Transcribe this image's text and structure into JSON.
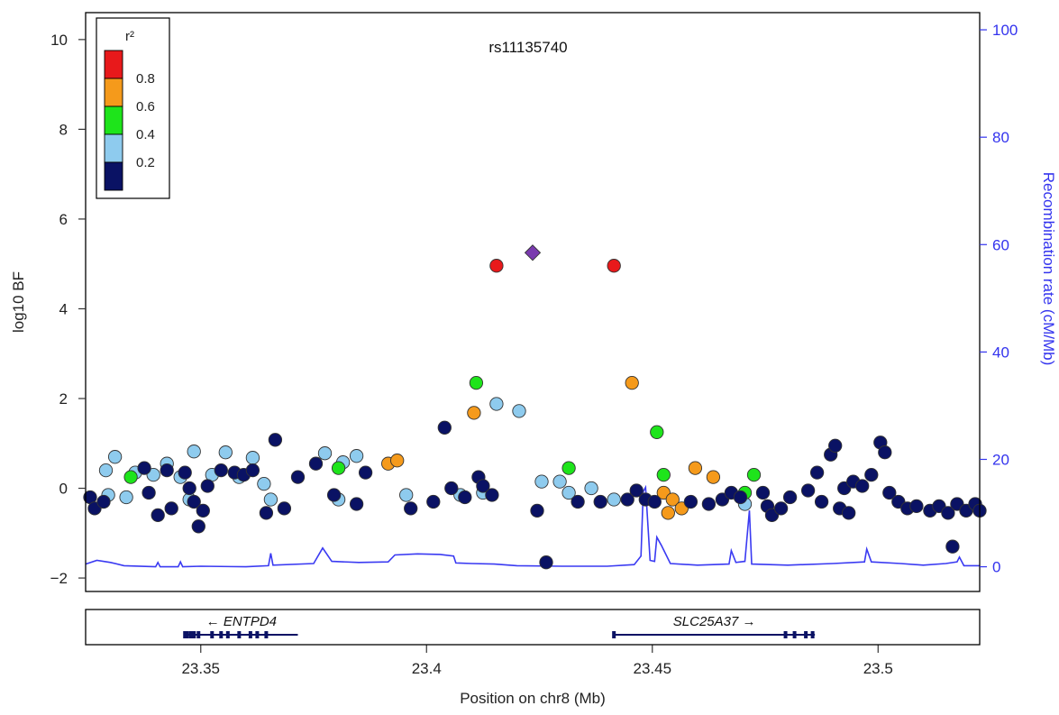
{
  "chart_data": {
    "type": "scatter",
    "title": "rs11135740",
    "xlabel": "Position on chr8 (Mb)",
    "ylabel": "log10 BF",
    "y2label": "Recombination rate (cM/Mb)",
    "xlim": [
      23.3245,
      23.5225
    ],
    "ylim": [
      -2.3,
      10.6
    ],
    "y2lim": [
      -4.6,
      103.2
    ],
    "x_ticks": [
      23.35,
      23.4,
      23.45,
      23.5
    ],
    "x_tick_labels": [
      "23.35",
      "23.4",
      "23.45",
      "23.5"
    ],
    "y_ticks": [
      -2,
      0,
      2,
      4,
      6,
      8,
      10
    ],
    "y_tick_labels": [
      "−2",
      "0",
      "2",
      "4",
      "6",
      "8",
      "10"
    ],
    "y2_ticks": [
      0,
      20,
      40,
      60,
      80,
      100
    ],
    "y2_tick_labels": [
      "0",
      "20",
      "40",
      "60",
      "80",
      "100"
    ],
    "legend": {
      "title": "r²",
      "placement": "top-left",
      "bins": [
        {
          "label": "0.8",
          "color": "#e8191b"
        },
        {
          "label": "0.6",
          "color": "#f59a1b"
        },
        {
          "label": "0.4",
          "color": "#1ee41b"
        },
        {
          "label": "0.2",
          "color": "#8ecbee"
        },
        {
          "label": "",
          "color": "#0a1264"
        }
      ]
    },
    "colors": {
      "red": "#e8191b",
      "orange": "#f59a1b",
      "green": "#1ee41b",
      "lightblue": "#8ecbee",
      "navy": "#0a1264",
      "lead": "#7a3aaf",
      "recomb": "#3a3af2"
    },
    "lead_snp": {
      "x": 23.4235,
      "y": 5.25
    },
    "points": [
      {
        "x": 23.4155,
        "y": 4.96,
        "c": "red"
      },
      {
        "x": 23.4415,
        "y": 4.96,
        "c": "red"
      },
      {
        "x": 23.411,
        "y": 2.35,
        "c": "green"
      },
      {
        "x": 23.4455,
        "y": 2.35,
        "c": "orange"
      },
      {
        "x": 23.4105,
        "y": 1.68,
        "c": "orange"
      },
      {
        "x": 23.4155,
        "y": 1.88,
        "c": "lightblue"
      },
      {
        "x": 23.4205,
        "y": 1.72,
        "c": "lightblue"
      },
      {
        "x": 23.404,
        "y": 1.35,
        "c": "navy"
      },
      {
        "x": 23.451,
        "y": 1.25,
        "c": "green"
      },
      {
        "x": 23.3665,
        "y": 1.08,
        "c": "navy"
      },
      {
        "x": 23.3555,
        "y": 0.8,
        "c": "lightblue"
      },
      {
        "x": 23.3485,
        "y": 0.82,
        "c": "lightblue"
      },
      {
        "x": 23.3425,
        "y": 0.55,
        "c": "lightblue"
      },
      {
        "x": 23.3615,
        "y": 0.68,
        "c": "lightblue"
      },
      {
        "x": 23.3775,
        "y": 0.78,
        "c": "lightblue"
      },
      {
        "x": 23.3845,
        "y": 0.72,
        "c": "lightblue"
      },
      {
        "x": 23.3815,
        "y": 0.58,
        "c": "lightblue"
      },
      {
        "x": 23.331,
        "y": 0.7,
        "c": "lightblue"
      },
      {
        "x": 23.329,
        "y": 0.4,
        "c": "lightblue"
      },
      {
        "x": 23.3355,
        "y": 0.35,
        "c": "lightblue"
      },
      {
        "x": 23.3395,
        "y": 0.3,
        "c": "lightblue"
      },
      {
        "x": 23.3455,
        "y": 0.25,
        "c": "lightblue"
      },
      {
        "x": 23.3525,
        "y": 0.3,
        "c": "lightblue"
      },
      {
        "x": 23.3585,
        "y": 0.25,
        "c": "lightblue"
      },
      {
        "x": 23.364,
        "y": 0.1,
        "c": "lightblue"
      },
      {
        "x": 23.3335,
        "y": -0.2,
        "c": "lightblue"
      },
      {
        "x": 23.3295,
        "y": -0.15,
        "c": "lightblue"
      },
      {
        "x": 23.3475,
        "y": -0.25,
        "c": "lightblue"
      },
      {
        "x": 23.3655,
        "y": -0.25,
        "c": "lightblue"
      },
      {
        "x": 23.3805,
        "y": -0.25,
        "c": "lightblue"
      },
      {
        "x": 23.3955,
        "y": -0.15,
        "c": "lightblue"
      },
      {
        "x": 23.4075,
        "y": -0.15,
        "c": "lightblue"
      },
      {
        "x": 23.4125,
        "y": -0.1,
        "c": "lightblue"
      },
      {
        "x": 23.4255,
        "y": 0.15,
        "c": "lightblue"
      },
      {
        "x": 23.4295,
        "y": 0.15,
        "c": "lightblue"
      },
      {
        "x": 23.4315,
        "y": -0.1,
        "c": "lightblue"
      },
      {
        "x": 23.4365,
        "y": 0.0,
        "c": "lightblue"
      },
      {
        "x": 23.4415,
        "y": -0.25,
        "c": "lightblue"
      },
      {
        "x": 23.4705,
        "y": -0.35,
        "c": "lightblue"
      },
      {
        "x": 23.3345,
        "y": 0.25,
        "c": "green"
      },
      {
        "x": 23.3805,
        "y": 0.45,
        "c": "green"
      },
      {
        "x": 23.4315,
        "y": 0.45,
        "c": "green"
      },
      {
        "x": 23.4525,
        "y": 0.3,
        "c": "green"
      },
      {
        "x": 23.4725,
        "y": 0.3,
        "c": "green"
      },
      {
        "x": 23.4705,
        "y": -0.1,
        "c": "green"
      },
      {
        "x": 23.3915,
        "y": 0.55,
        "c": "orange"
      },
      {
        "x": 23.3935,
        "y": 0.62,
        "c": "orange"
      },
      {
        "x": 23.4595,
        "y": 0.45,
        "c": "orange"
      },
      {
        "x": 23.4635,
        "y": 0.25,
        "c": "orange"
      },
      {
        "x": 23.4525,
        "y": -0.1,
        "c": "orange"
      },
      {
        "x": 23.4545,
        "y": -0.25,
        "c": "orange"
      },
      {
        "x": 23.4565,
        "y": -0.45,
        "c": "orange"
      },
      {
        "x": 23.4535,
        "y": -0.55,
        "c": "orange"
      },
      {
        "x": 23.3255,
        "y": -0.2,
        "c": "navy"
      },
      {
        "x": 23.3265,
        "y": -0.45,
        "c": "navy"
      },
      {
        "x": 23.3285,
        "y": -0.3,
        "c": "navy"
      },
      {
        "x": 23.3375,
        "y": 0.45,
        "c": "navy"
      },
      {
        "x": 23.3385,
        "y": -0.1,
        "c": "navy"
      },
      {
        "x": 23.3405,
        "y": -0.6,
        "c": "navy"
      },
      {
        "x": 23.3425,
        "y": 0.4,
        "c": "navy"
      },
      {
        "x": 23.3435,
        "y": -0.45,
        "c": "navy"
      },
      {
        "x": 23.3465,
        "y": 0.35,
        "c": "navy"
      },
      {
        "x": 23.3475,
        "y": 0.0,
        "c": "navy"
      },
      {
        "x": 23.3485,
        "y": -0.3,
        "c": "navy"
      },
      {
        "x": 23.3495,
        "y": -0.85,
        "c": "navy"
      },
      {
        "x": 23.3505,
        "y": -0.5,
        "c": "navy"
      },
      {
        "x": 23.3515,
        "y": 0.05,
        "c": "navy"
      },
      {
        "x": 23.3545,
        "y": 0.4,
        "c": "navy"
      },
      {
        "x": 23.3575,
        "y": 0.35,
        "c": "navy"
      },
      {
        "x": 23.3595,
        "y": 0.3,
        "c": "navy"
      },
      {
        "x": 23.3615,
        "y": 0.4,
        "c": "navy"
      },
      {
        "x": 23.3645,
        "y": -0.55,
        "c": "navy"
      },
      {
        "x": 23.3685,
        "y": -0.45,
        "c": "navy"
      },
      {
        "x": 23.3715,
        "y": 0.25,
        "c": "navy"
      },
      {
        "x": 23.3755,
        "y": 0.55,
        "c": "navy"
      },
      {
        "x": 23.3795,
        "y": -0.15,
        "c": "navy"
      },
      {
        "x": 23.3845,
        "y": -0.35,
        "c": "navy"
      },
      {
        "x": 23.3865,
        "y": 0.35,
        "c": "navy"
      },
      {
        "x": 23.3965,
        "y": -0.45,
        "c": "navy"
      },
      {
        "x": 23.4015,
        "y": -0.3,
        "c": "navy"
      },
      {
        "x": 23.4055,
        "y": 0.0,
        "c": "navy"
      },
      {
        "x": 23.4085,
        "y": -0.2,
        "c": "navy"
      },
      {
        "x": 23.4115,
        "y": 0.25,
        "c": "navy"
      },
      {
        "x": 23.4125,
        "y": 0.05,
        "c": "navy"
      },
      {
        "x": 23.4145,
        "y": -0.15,
        "c": "navy"
      },
      {
        "x": 23.4245,
        "y": -0.5,
        "c": "navy"
      },
      {
        "x": 23.4265,
        "y": -1.65,
        "c": "navy"
      },
      {
        "x": 23.4335,
        "y": -0.3,
        "c": "navy"
      },
      {
        "x": 23.4385,
        "y": -0.3,
        "c": "navy"
      },
      {
        "x": 23.4445,
        "y": -0.25,
        "c": "navy"
      },
      {
        "x": 23.4465,
        "y": -0.05,
        "c": "navy"
      },
      {
        "x": 23.4485,
        "y": -0.25,
        "c": "navy"
      },
      {
        "x": 23.4505,
        "y": -0.3,
        "c": "navy"
      },
      {
        "x": 23.4585,
        "y": -0.3,
        "c": "navy"
      },
      {
        "x": 23.4625,
        "y": -0.35,
        "c": "navy"
      },
      {
        "x": 23.4655,
        "y": -0.25,
        "c": "navy"
      },
      {
        "x": 23.4675,
        "y": -0.1,
        "c": "navy"
      },
      {
        "x": 23.4695,
        "y": -0.2,
        "c": "navy"
      },
      {
        "x": 23.4745,
        "y": -0.1,
        "c": "navy"
      },
      {
        "x": 23.4755,
        "y": -0.4,
        "c": "navy"
      },
      {
        "x": 23.4765,
        "y": -0.6,
        "c": "navy"
      },
      {
        "x": 23.4785,
        "y": -0.45,
        "c": "navy"
      },
      {
        "x": 23.4805,
        "y": -0.2,
        "c": "navy"
      },
      {
        "x": 23.4845,
        "y": -0.05,
        "c": "navy"
      },
      {
        "x": 23.4865,
        "y": 0.35,
        "c": "navy"
      },
      {
        "x": 23.4875,
        "y": -0.3,
        "c": "navy"
      },
      {
        "x": 23.4895,
        "y": 0.75,
        "c": "navy"
      },
      {
        "x": 23.4905,
        "y": 0.95,
        "c": "navy"
      },
      {
        "x": 23.4915,
        "y": -0.45,
        "c": "navy"
      },
      {
        "x": 23.4925,
        "y": 0.0,
        "c": "navy"
      },
      {
        "x": 23.4935,
        "y": -0.55,
        "c": "navy"
      },
      {
        "x": 23.4945,
        "y": 0.15,
        "c": "navy"
      },
      {
        "x": 23.4965,
        "y": 0.05,
        "c": "navy"
      },
      {
        "x": 23.4985,
        "y": 0.3,
        "c": "navy"
      },
      {
        "x": 23.5005,
        "y": 1.02,
        "c": "navy"
      },
      {
        "x": 23.5015,
        "y": 0.8,
        "c": "navy"
      },
      {
        "x": 23.5025,
        "y": -0.1,
        "c": "navy"
      },
      {
        "x": 23.5045,
        "y": -0.3,
        "c": "navy"
      },
      {
        "x": 23.5065,
        "y": -0.45,
        "c": "navy"
      },
      {
        "x": 23.5085,
        "y": -0.4,
        "c": "navy"
      },
      {
        "x": 23.5115,
        "y": -0.5,
        "c": "navy"
      },
      {
        "x": 23.5135,
        "y": -0.4,
        "c": "navy"
      },
      {
        "x": 23.5155,
        "y": -0.55,
        "c": "navy"
      },
      {
        "x": 23.5165,
        "y": -1.3,
        "c": "navy"
      },
      {
        "x": 23.5175,
        "y": -0.35,
        "c": "navy"
      },
      {
        "x": 23.5195,
        "y": -0.5,
        "c": "navy"
      },
      {
        "x": 23.5215,
        "y": -0.35,
        "c": "navy"
      },
      {
        "x": 23.5225,
        "y": -0.5,
        "c": "navy"
      }
    ],
    "recombination_rate": [
      [
        23.3245,
        0.5
      ],
      [
        23.327,
        1.2
      ],
      [
        23.33,
        0.8
      ],
      [
        23.333,
        0.2
      ],
      [
        23.34,
        0.0
      ],
      [
        23.3405,
        0.8
      ],
      [
        23.341,
        0.0
      ],
      [
        23.345,
        0.0
      ],
      [
        23.3455,
        0.9
      ],
      [
        23.346,
        0.0
      ],
      [
        23.35,
        0.1
      ],
      [
        23.36,
        0.0
      ],
      [
        23.365,
        0.2
      ],
      [
        23.3655,
        2.5
      ],
      [
        23.366,
        0.3
      ],
      [
        23.375,
        0.6
      ],
      [
        23.377,
        3.5
      ],
      [
        23.379,
        1.0
      ],
      [
        23.385,
        0.8
      ],
      [
        23.3915,
        0.9
      ],
      [
        23.393,
        2.2
      ],
      [
        23.398,
        2.4
      ],
      [
        23.403,
        2.3
      ],
      [
        23.406,
        2.0
      ],
      [
        23.4065,
        0.7
      ],
      [
        23.41,
        0.6
      ],
      [
        23.415,
        0.5
      ],
      [
        23.42,
        0.2
      ],
      [
        23.43,
        0.1
      ],
      [
        23.44,
        0.1
      ],
      [
        23.446,
        0.4
      ],
      [
        23.4475,
        2.0
      ],
      [
        23.448,
        14.0
      ],
      [
        23.4485,
        14.8
      ],
      [
        23.4495,
        1.2
      ],
      [
        23.4505,
        1.0
      ],
      [
        23.451,
        5.5
      ],
      [
        23.452,
        4.0
      ],
      [
        23.454,
        0.6
      ],
      [
        23.46,
        0.3
      ],
      [
        23.467,
        0.5
      ],
      [
        23.4675,
        3.0
      ],
      [
        23.4685,
        0.8
      ],
      [
        23.4705,
        1.0
      ],
      [
        23.4715,
        10.5
      ],
      [
        23.472,
        0.5
      ],
      [
        23.48,
        0.3
      ],
      [
        23.49,
        0.6
      ],
      [
        23.497,
        0.9
      ],
      [
        23.4975,
        3.3
      ],
      [
        23.4985,
        0.9
      ],
      [
        23.505,
        0.6
      ],
      [
        23.51,
        0.3
      ],
      [
        23.515,
        0.6
      ],
      [
        23.5175,
        0.9
      ],
      [
        23.518,
        1.8
      ],
      [
        23.519,
        0.2
      ],
      [
        23.5225,
        0.2
      ]
    ],
    "genes": [
      {
        "name": "ENTPD4",
        "strand": "-",
        "label": "← ENTPD4",
        "start": 23.3465,
        "end": 23.3715,
        "exons": [
          23.3465,
          23.347,
          23.3478,
          23.3485,
          23.3495,
          23.3525,
          23.3545,
          23.356,
          23.3585,
          23.361,
          23.3625,
          23.3645
        ]
      },
      {
        "name": "SLC25A37",
        "strand": "+",
        "label": "SLC25A37 →",
        "start": 23.4415,
        "end": 23.486,
        "exons": [
          23.4415,
          23.4795,
          23.4815,
          23.484,
          23.4855
        ]
      }
    ]
  }
}
